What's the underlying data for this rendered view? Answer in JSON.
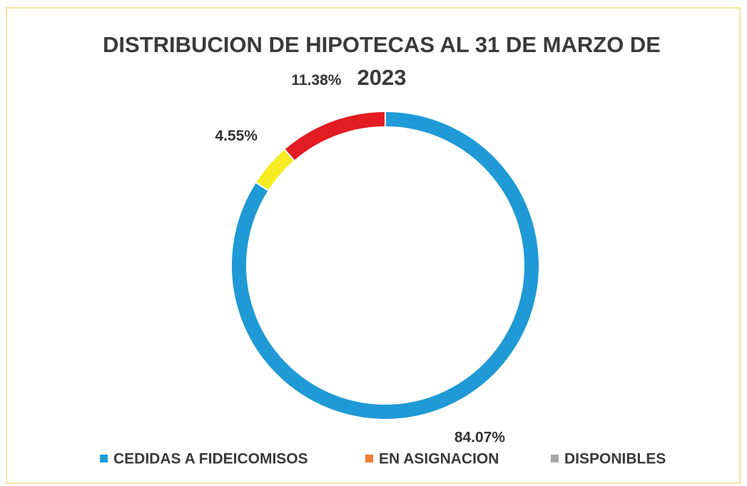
{
  "chart_data": {
    "type": "donut",
    "title": "DISTRIBUCION DE HIPOTECAS AL 31 DE MARZO DE 2023",
    "categories": [
      "CEDIDAS A FIDEICOMISOS",
      "EN ASIGNACION",
      "DISPONIBLES"
    ],
    "values": [
      84.07,
      4.55,
      11.38
    ],
    "value_labels": [
      "84.07%",
      "4.55%",
      "11.38%"
    ],
    "colors": [
      "#1f9ad6",
      "#f5ec22",
      "#e31b23"
    ],
    "legend_colors": [
      "#1f9ad6",
      "#ed7d31",
      "#a5a5a5"
    ],
    "legend": "bottom"
  }
}
